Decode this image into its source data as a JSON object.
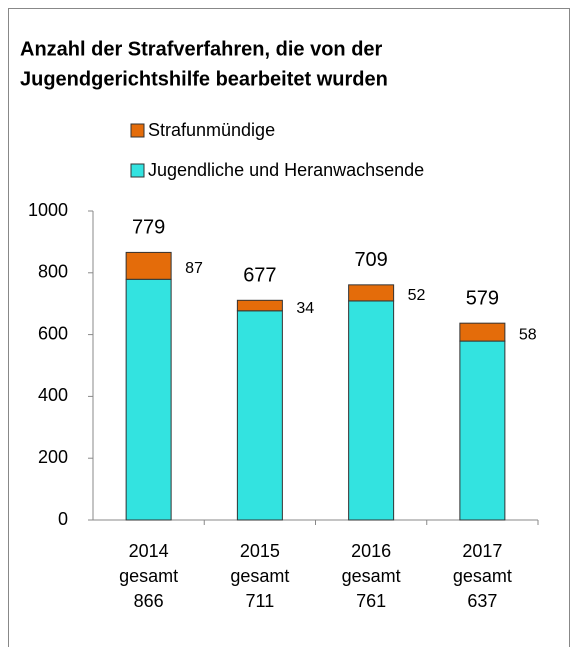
{
  "chart_data": {
    "type": "stacked_bar",
    "title": [
      "Anzahl der Strafverfahren, die von der",
      "Jugendgerichtshilfe bearbeitet wurden"
    ],
    "categories": [
      [
        "2014",
        "gesamt",
        "866"
      ],
      [
        "2015",
        "gesamt",
        "711"
      ],
      [
        "2016",
        "gesamt",
        "761"
      ],
      [
        "2017",
        "gesamt",
        "637"
      ]
    ],
    "series": [
      {
        "name": "Jugendliche und Heranwachsende",
        "color": "#33e3e0",
        "values": [
          779,
          677,
          709,
          579
        ]
      },
      {
        "name": "Strafunmündige",
        "color": "#e46c0a",
        "values": [
          87,
          34,
          52,
          58
        ]
      }
    ],
    "ylim": [
      0,
      1000
    ],
    "yticks": [
      0,
      200,
      400,
      600,
      800,
      1000
    ]
  }
}
